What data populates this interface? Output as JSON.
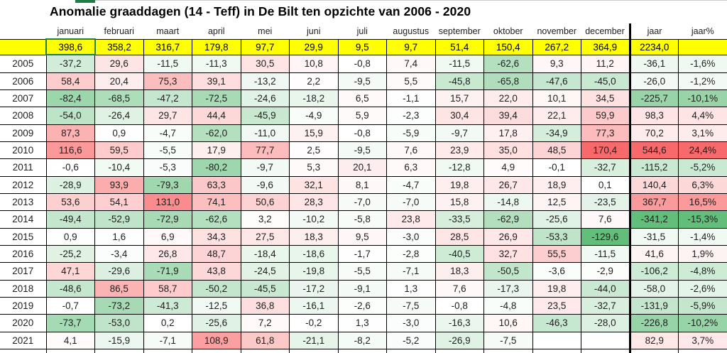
{
  "title": "Anomalie graaddagen (14 - Teff) in De Bilt ten opzichte van 2006 - 2020",
  "columns": {
    "months": [
      "januari",
      "februari",
      "maart",
      "april",
      "mei",
      "juni",
      "juli",
      "augustus",
      "september",
      "oktober",
      "november",
      "december"
    ],
    "jaar_label": "jaar",
    "jaar_pct_label": "jaar%"
  },
  "normals_row": {
    "values": [
      "398,6",
      "358,2",
      "316,7",
      "179,8",
      "97,7",
      "29,9",
      "9,5",
      "9,7",
      "51,4",
      "150,4",
      "267,2",
      "364,9"
    ],
    "jaar": "2234,0",
    "jaar_pct": ""
  },
  "rows": [
    {
      "year": "2005",
      "months": [
        "-37,2",
        "29,6",
        "-11,5",
        "-11,3",
        "30,5",
        "10,8",
        "-0,8",
        "7,4",
        "-11,5",
        "-62,6",
        "9,3",
        "11,2"
      ],
      "jaar": "-36,1",
      "jaar_pct": "-1,6%"
    },
    {
      "year": "2006",
      "months": [
        "58,4",
        "20,4",
        "75,3",
        "39,1",
        "-13,2",
        "2,2",
        "-9,5",
        "5,5",
        "-45,8",
        "-65,8",
        "-47,6",
        "-45,0"
      ],
      "jaar": "-26,0",
      "jaar_pct": "-1,2%"
    },
    {
      "year": "2007",
      "months": [
        "-82,4",
        "-68,5",
        "-47,2",
        "-72,5",
        "-24,6",
        "-18,2",
        "6,5",
        "-1,1",
        "15,7",
        "22,0",
        "10,1",
        "34,5"
      ],
      "jaar": "-225,7",
      "jaar_pct": "-10,1%"
    },
    {
      "year": "2008",
      "months": [
        "-54,0",
        "-26,4",
        "29,7",
        "44,4",
        "-45,9",
        "-4,9",
        "5,9",
        "-2,3",
        "30,4",
        "39,4",
        "22,1",
        "59,9"
      ],
      "jaar": "98,3",
      "jaar_pct": "4,4%"
    },
    {
      "year": "2009",
      "months": [
        "87,3",
        "0,9",
        "-4,7",
        "-62,0",
        "-11,0",
        "15,9",
        "-0,8",
        "-5,9",
        "-9,7",
        "17,8",
        "-34,9",
        "77,3"
      ],
      "jaar": "70,2",
      "jaar_pct": "3,1%"
    },
    {
      "year": "2010",
      "months": [
        "116,6",
        "59,5",
        "-5,5",
        "17,9",
        "77,7",
        "2,5",
        "-9,5",
        "7,6",
        "23,9",
        "35,0",
        "48,5",
        "170,4"
      ],
      "jaar": "544,6",
      "jaar_pct": "24,4%"
    },
    {
      "year": "2011",
      "months": [
        "-0,6",
        "-10,4",
        "-5,3",
        "-80,2",
        "-9,7",
        "5,3",
        "20,1",
        "6,3",
        "-12,8",
        "4,9",
        "-0,1",
        "-32,7"
      ],
      "jaar": "-115,2",
      "jaar_pct": "-5,2%"
    },
    {
      "year": "2012",
      "months": [
        "-28,9",
        "93,9",
        "-79,3",
        "63,3",
        "-9,6",
        "32,1",
        "8,1",
        "-4,7",
        "19,8",
        "26,7",
        "18,9",
        "0,1"
      ],
      "jaar": "140,4",
      "jaar_pct": "6,3%"
    },
    {
      "year": "2013",
      "months": [
        "53,6",
        "54,1",
        "131,0",
        "74,1",
        "50,6",
        "28,3",
        "-7,0",
        "-7,0",
        "15,8",
        "-14,8",
        "12,5",
        "-23,5"
      ],
      "jaar": "367,7",
      "jaar_pct": "16,5%"
    },
    {
      "year": "2014",
      "months": [
        "-49,4",
        "-52,9",
        "-72,9",
        "-62,6",
        "3,2",
        "-10,2",
        "-5,8",
        "23,8",
        "-33,5",
        "-62,9",
        "-25,6",
        "7,6"
      ],
      "jaar": "-341,2",
      "jaar_pct": "-15,3%"
    },
    {
      "year": "2015",
      "months": [
        "0,9",
        "1,6",
        "6,9",
        "34,3",
        "27,5",
        "18,3",
        "9,5",
        "-3,0",
        "28,5",
        "26,9",
        "-53,3",
        "-129,6"
      ],
      "jaar": "-31,5",
      "jaar_pct": "-1,4%"
    },
    {
      "year": "2016",
      "months": [
        "-25,2",
        "-3,4",
        "26,8",
        "48,7",
        "-18,4",
        "-18,6",
        "-1,7",
        "-2,8",
        "-40,5",
        "32,7",
        "55,5",
        "-11,5"
      ],
      "jaar": "41,6",
      "jaar_pct": "1,9%"
    },
    {
      "year": "2017",
      "months": [
        "47,1",
        "-29,6",
        "-71,9",
        "43,8",
        "-24,5",
        "-19,8",
        "-5,5",
        "-7,1",
        "18,3",
        "-50,5",
        "-3,6",
        "-2,9"
      ],
      "jaar": "-106,2",
      "jaar_pct": "-4,8%"
    },
    {
      "year": "2018",
      "months": [
        "-48,6",
        "86,5",
        "58,7",
        "-50,2",
        "-45,5",
        "-17,2",
        "-9,1",
        "1,3",
        "7,6",
        "-17,3",
        "19,8",
        "-44,0"
      ],
      "jaar": "-58,0",
      "jaar_pct": "-2,6%"
    },
    {
      "year": "2019",
      "months": [
        "-0,7",
        "-73,2",
        "-41,3",
        "-12,5",
        "36,8",
        "-16,1",
        "-2,6",
        "-7,5",
        "-0,8",
        "-4,8",
        "23,5",
        "-32,7"
      ],
      "jaar": "-131,9",
      "jaar_pct": "-5,9%"
    },
    {
      "year": "2020",
      "months": [
        "-73,7",
        "-53,0",
        "0,2",
        "-25,6",
        "7,2",
        "-0,2",
        "1,3",
        "-3,0",
        "-16,3",
        "10,6",
        "-46,3",
        "-28,0"
      ],
      "jaar": "-226,8",
      "jaar_pct": "-10,2%"
    },
    {
      "year": "2021",
      "months": [
        "4,1",
        "-15,9",
        "-7,1",
        "108,9",
        "61,8",
        "-21,1",
        "-8,2",
        "-5,2",
        "-26,9",
        "-7,5",
        "",
        ""
      ],
      "jaar": "82,9",
      "jaar_pct": "3,7%"
    }
  ],
  "colors": {
    "negative_full": "#63be7b",
    "positive_full": "#f8696b",
    "neutral": "#ffffff",
    "normals_bg": "#ffff00",
    "selection_green": "#1f7d45",
    "grid_line": "#000000"
  },
  "scales": {
    "months": {
      "min": -129.6,
      "max": 170.4
    },
    "jaar": {
      "min": -341.2,
      "max": 544.6
    },
    "jaar_pct": {
      "min": -15.3,
      "max": 24.4
    }
  }
}
